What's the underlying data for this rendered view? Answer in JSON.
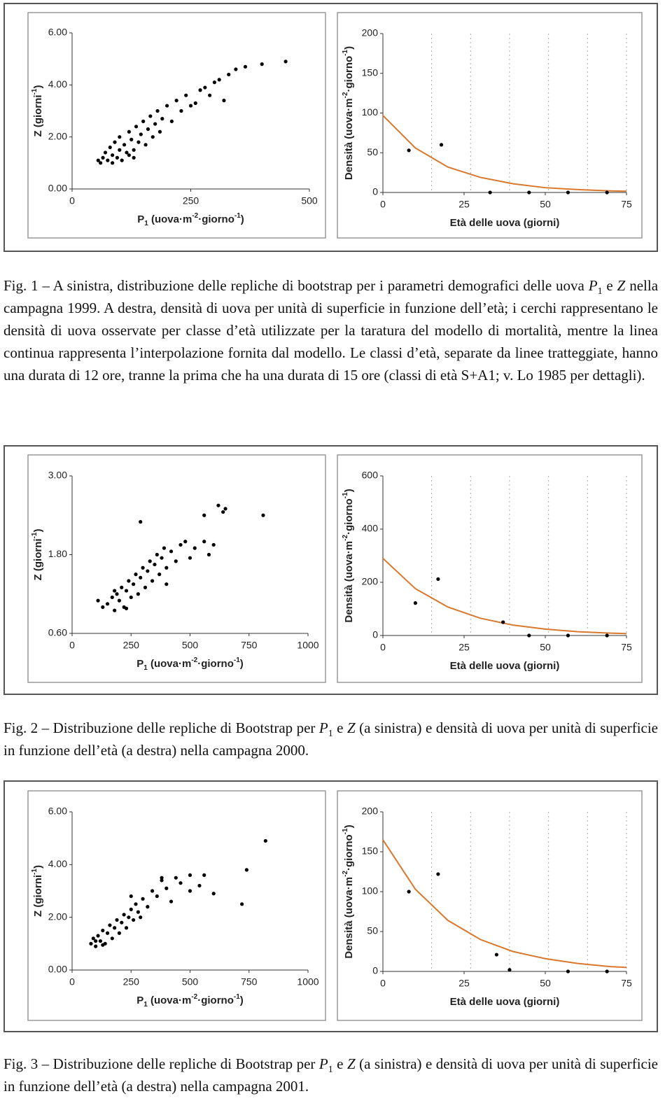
{
  "chart_data": [
    {
      "type": "scatter",
      "y_label": [
        "Z",
        " (giorni",
        "-1",
        ")"
      ],
      "y_label_sup": [
        2
      ],
      "x_label": [
        "P",
        "1",
        " (uova·m",
        "-2",
        "·giorno",
        "-1",
        ")"
      ],
      "x_label_sub": [
        1
      ],
      "x_label_sup": [
        3,
        5
      ],
      "xlim": [
        0,
        500
      ],
      "xticks": [
        0,
        250,
        500
      ],
      "ylim": [
        0,
        6
      ],
      "yticks": [
        {
          "value": 0,
          "label": "0.00"
        },
        {
          "value": 2,
          "label": "2.00"
        },
        {
          "value": 4,
          "label": "4.00"
        },
        {
          "value": 6,
          "label": "6.00"
        }
      ],
      "series": [
        {
          "style": "dots",
          "color": "#000000",
          "x": [
            60,
            65,
            70,
            75,
            80,
            85,
            90,
            95,
            100,
            100,
            105,
            110,
            115,
            120,
            120,
            125,
            130,
            135,
            140,
            145,
            150,
            155,
            160,
            165,
            170,
            175,
            180,
            185,
            190,
            200,
            210,
            220,
            230,
            240,
            250,
            260,
            270,
            280,
            290,
            300,
            310,
            320,
            330,
            345,
            365,
            400,
            450,
            55,
            85,
            130
          ],
          "values": [
            1.0,
            1.2,
            1.4,
            1.1,
            1.6,
            1.3,
            1.8,
            1.2,
            1.5,
            2.0,
            1.1,
            1.7,
            1.4,
            2.2,
            1.3,
            1.9,
            1.5,
            2.4,
            1.8,
            2.1,
            2.6,
            1.7,
            2.3,
            2.8,
            2.0,
            2.5,
            3.0,
            2.2,
            2.7,
            3.2,
            2.6,
            3.4,
            3.0,
            3.6,
            3.2,
            3.3,
            3.8,
            3.9,
            3.6,
            4.1,
            4.2,
            3.4,
            4.4,
            4.6,
            4.7,
            4.8,
            4.9,
            1.1,
            1.0,
            1.2
          ]
        }
      ]
    },
    {
      "type": "line",
      "y_label": [
        "Densità (uova·m",
        "-2",
        "·giorno",
        "-1",
        ")"
      ],
      "y_label_sup": [
        1,
        3
      ],
      "x_label": [
        "Età delle uova (giorni)"
      ],
      "xlim": [
        0,
        75
      ],
      "xticks": [
        0,
        25,
        50,
        75
      ],
      "ylim": [
        0,
        200
      ],
      "yticks": [
        0,
        50,
        100,
        150,
        200
      ],
      "class_boundaries": [
        15,
        27,
        39,
        51,
        63,
        75
      ],
      "series": [
        {
          "style": "line",
          "color": "#d9782d",
          "x": [
            0,
            10,
            20,
            30,
            40,
            50,
            60,
            70,
            75
          ],
          "values": [
            97,
            56,
            32,
            19,
            11,
            6,
            3.6,
            2,
            1.6
          ]
        },
        {
          "style": "dots",
          "color": "#000000",
          "x": [
            8,
            18,
            33,
            45,
            57,
            69
          ],
          "values": [
            53,
            60,
            0,
            0,
            0,
            0
          ]
        }
      ]
    },
    {
      "type": "scatter",
      "y_label": [
        "Z",
        " (giorni",
        "-1",
        ")"
      ],
      "y_label_sup": [
        2
      ],
      "x_label": [
        "P",
        "1",
        " (uova·m",
        "-2",
        "·giorno",
        "-1",
        ")"
      ],
      "x_label_sub": [
        1
      ],
      "x_label_sup": [
        3,
        5
      ],
      "xlim": [
        0,
        1000
      ],
      "xticks": [
        0,
        250,
        500,
        750,
        1000
      ],
      "ylim": [
        0.6,
        3
      ],
      "yticks": [
        {
          "value": 0.6,
          "label": "0.60"
        },
        {
          "value": 1.8,
          "label": "1.80"
        },
        {
          "value": 3,
          "label": "3.00"
        }
      ],
      "series": [
        {
          "style": "dots",
          "color": "#000000",
          "x": [
            110,
            130,
            150,
            170,
            180,
            190,
            200,
            210,
            220,
            230,
            240,
            250,
            260,
            270,
            280,
            290,
            300,
            310,
            320,
            330,
            340,
            350,
            360,
            370,
            380,
            390,
            400,
            420,
            440,
            460,
            480,
            500,
            520,
            560,
            580,
            600,
            560,
            620,
            650,
            640,
            810,
            290,
            400,
            180,
            230
          ],
          "values": [
            1.1,
            1.0,
            1.05,
            1.15,
            0.95,
            1.2,
            1.1,
            1.3,
            1.0,
            1.25,
            1.4,
            1.15,
            1.35,
            1.5,
            1.2,
            1.45,
            1.6,
            1.3,
            1.55,
            1.7,
            1.4,
            1.65,
            1.8,
            1.5,
            1.75,
            1.9,
            1.6,
            1.85,
            1.7,
            1.95,
            2.0,
            1.75,
            1.9,
            2.0,
            1.8,
            1.95,
            2.4,
            2.55,
            2.5,
            2.45,
            2.4,
            2.3,
            1.35,
            1.25,
            0.98
          ]
        }
      ]
    },
    {
      "type": "line",
      "y_label": [
        "Densità (uova·m",
        "-2",
        "·giorno",
        "-1",
        ")"
      ],
      "y_label_sup": [
        1,
        3
      ],
      "x_label": [
        "Età delle uova (giorni)"
      ],
      "xlim": [
        0,
        75
      ],
      "xticks": [
        0,
        25,
        50,
        75
      ],
      "ylim": [
        0,
        600
      ],
      "yticks": [
        0,
        200,
        400,
        600
      ],
      "class_boundaries": [
        15,
        27,
        39,
        51,
        63,
        75
      ],
      "series": [
        {
          "style": "line",
          "color": "#d9782d",
          "x": [
            0,
            10,
            20,
            30,
            40,
            50,
            60,
            70,
            75
          ],
          "values": [
            290,
            176,
            107,
            65,
            39,
            24,
            14,
            9,
            7
          ]
        },
        {
          "style": "dots",
          "color": "#000000",
          "x": [
            10,
            17,
            37,
            45,
            57,
            69
          ],
          "values": [
            122,
            212,
            50,
            0,
            0,
            0
          ]
        }
      ]
    },
    {
      "type": "scatter",
      "y_label": [
        "Z",
        " (giorni",
        "-1",
        ")"
      ],
      "y_label_sup": [
        2
      ],
      "x_label": [
        "P",
        "1",
        " (uova·m",
        "-2",
        "·giorno",
        "-1",
        ")"
      ],
      "x_label_sub": [
        1
      ],
      "x_label_sup": [
        3,
        5
      ],
      "xlim": [
        0,
        1000
      ],
      "xticks": [
        0,
        250,
        500,
        750,
        1000
      ],
      "ylim": [
        0,
        6
      ],
      "yticks": [
        {
          "value": 0,
          "label": "0.00"
        },
        {
          "value": 2,
          "label": "2.00"
        },
        {
          "value": 4,
          "label": "4.00"
        },
        {
          "value": 6,
          "label": "6.00"
        }
      ],
      "series": [
        {
          "style": "dots",
          "color": "#000000",
          "x": [
            80,
            90,
            100,
            110,
            120,
            130,
            140,
            150,
            160,
            170,
            180,
            190,
            200,
            210,
            220,
            230,
            240,
            250,
            260,
            270,
            280,
            290,
            300,
            320,
            340,
            360,
            380,
            400,
            420,
            440,
            460,
            500,
            500,
            540,
            560,
            600,
            720,
            740,
            820,
            250,
            380,
            100,
            130
          ],
          "values": [
            1.0,
            1.2,
            0.9,
            1.3,
            1.1,
            1.5,
            1.0,
            1.4,
            1.7,
            1.2,
            1.6,
            1.9,
            1.4,
            1.8,
            2.1,
            1.6,
            2.0,
            2.3,
            1.9,
            2.5,
            2.2,
            2.0,
            2.7,
            2.4,
            3.0,
            2.8,
            3.4,
            3.1,
            2.6,
            3.5,
            3.3,
            3.0,
            3.6,
            3.2,
            3.6,
            2.9,
            2.5,
            3.8,
            4.9,
            2.8,
            3.5,
            1.1,
            0.95
          ]
        }
      ]
    },
    {
      "type": "line",
      "y_label": [
        "Densità (uova·m",
        "-2",
        "·giorno",
        "-1",
        ")"
      ],
      "y_label_sup": [
        1,
        3
      ],
      "x_label": [
        "Età delle uova (giorni)"
      ],
      "xlim": [
        0,
        75
      ],
      "xticks": [
        0,
        25,
        50,
        75
      ],
      "ylim": [
        0,
        200
      ],
      "yticks": [
        0,
        50,
        100,
        150,
        200
      ],
      "class_boundaries": [
        15,
        27,
        39,
        51,
        63,
        75
      ],
      "series": [
        {
          "style": "line",
          "color": "#d9782d",
          "x": [
            0,
            10,
            20,
            30,
            40,
            50,
            60,
            70,
            75
          ],
          "values": [
            165,
            103,
            64,
            40,
            25,
            16,
            10,
            6,
            5
          ]
        },
        {
          "style": "dots",
          "color": "#000000",
          "x": [
            8,
            17,
            35,
            39,
            57,
            69
          ],
          "values": [
            100,
            122,
            21,
            2,
            0,
            0
          ]
        }
      ]
    }
  ],
  "captions": [
    {
      "parts": [
        "Fig. 1 – A sinistra, distribuzione delle repliche di bootstrap per i parametri demografici delle uova ",
        "P",
        "1",
        " e ",
        "Z",
        " nella campagna 1999. A destra, densità di uova per unità di superficie in funzione dell’età; i cerchi rappresentano le densità di uova osservate per classe d’età utilizzate per la taratura del modello di mortalità, mentre la linea continua rappresenta l’interpolazione fornita dal modello. Le classi d’età, separate da linee tratteggiate, hanno una durata di 12 ore, tranne la prima che ha una durata di 15 ore (classi di età S+A1; v. Lo 1985 per dettagli)."
      ],
      "italic": [
        1,
        4
      ],
      "sub": [
        2
      ]
    },
    {
      "parts": [
        "Fig. 2 – Distribuzione delle repliche di Bootstrap per ",
        "P",
        "1",
        " e ",
        "Z",
        " (a sinistra) e densità di uova per unità di superficie in funzione dell’età (a destra) nella campagna 2000."
      ],
      "italic": [
        1,
        4
      ],
      "sub": [
        2
      ]
    },
    {
      "parts": [
        "Fig. 3 – Distribuzione delle repliche di Bootstrap per ",
        "P",
        "1",
        " e ",
        "Z",
        " (a sinistra) e densità di uova per unità di superficie in funzione dell’età (a destra) nella campagna 2001."
      ],
      "italic": [
        1,
        4
      ],
      "sub": [
        2
      ]
    }
  ]
}
